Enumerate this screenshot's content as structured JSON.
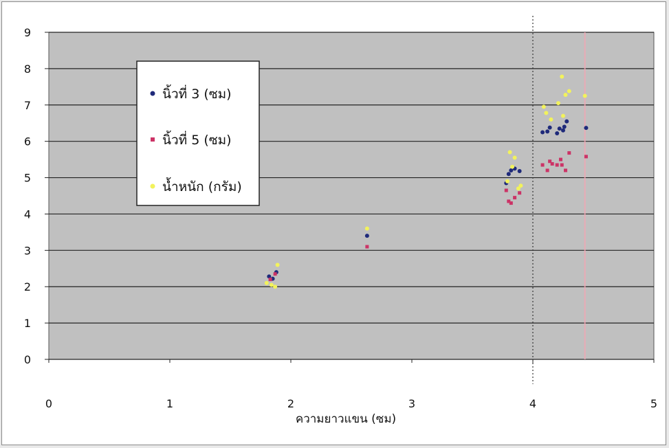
{
  "chart_data": {
    "type": "scatter",
    "title": "",
    "xlabel": "ความยาวแขน (ซม)",
    "ylabel": "",
    "xlim": [
      0,
      5
    ],
    "ylim": [
      0,
      9
    ],
    "x_ticks": [
      0,
      1,
      2,
      3,
      4,
      5
    ],
    "y_ticks": [
      0,
      1,
      2,
      3,
      4,
      5,
      6,
      7,
      8,
      9
    ],
    "grid": "horizontal",
    "legend_position": "upper-left",
    "plot_background": "#c0c0c0",
    "reference_lines": [
      {
        "x": 4.0,
        "style": "dotted",
        "color": "#333333"
      },
      {
        "x": 4.43,
        "style": "solid",
        "color": "#f4a6b4"
      }
    ],
    "series": [
      {
        "name": "นิ้วที่ 3 (ซม)",
        "color": "#1f2a7a",
        "marker": "circle",
        "points": [
          [
            1.82,
            2.28
          ],
          [
            1.85,
            2.22
          ],
          [
            1.88,
            2.4
          ],
          [
            2.63,
            3.4
          ],
          [
            3.78,
            4.85
          ],
          [
            3.8,
            5.1
          ],
          [
            3.82,
            5.2
          ],
          [
            3.85,
            5.25
          ],
          [
            3.89,
            5.18
          ],
          [
            4.08,
            6.25
          ],
          [
            4.12,
            6.27
          ],
          [
            4.14,
            6.38
          ],
          [
            4.2,
            6.22
          ],
          [
            4.22,
            6.35
          ],
          [
            4.25,
            6.3
          ],
          [
            4.26,
            6.4
          ],
          [
            4.28,
            6.55
          ],
          [
            4.44,
            6.37
          ]
        ]
      },
      {
        "name": "นิ้วที่ 5 (ซม)",
        "color": "#cc3366",
        "marker": "square",
        "points": [
          [
            1.83,
            2.2
          ],
          [
            1.87,
            2.35
          ],
          [
            2.63,
            3.1
          ],
          [
            3.78,
            4.65
          ],
          [
            3.8,
            4.35
          ],
          [
            3.82,
            4.3
          ],
          [
            3.85,
            4.45
          ],
          [
            3.89,
            4.58
          ],
          [
            4.08,
            5.35
          ],
          [
            4.12,
            5.2
          ],
          [
            4.14,
            5.45
          ],
          [
            4.16,
            5.38
          ],
          [
            4.2,
            5.35
          ],
          [
            4.23,
            5.5
          ],
          [
            4.24,
            5.35
          ],
          [
            4.27,
            5.2
          ],
          [
            4.3,
            5.68
          ],
          [
            4.44,
            5.58
          ]
        ]
      },
      {
        "name": "น้ำหนัก (กรัม)",
        "color": "#f2f25c",
        "marker": "circle",
        "points": [
          [
            1.8,
            2.1
          ],
          [
            1.84,
            2.05
          ],
          [
            1.87,
            2.0
          ],
          [
            1.89,
            2.6
          ],
          [
            2.63,
            3.6
          ],
          [
            3.79,
            4.9
          ],
          [
            3.81,
            5.7
          ],
          [
            3.83,
            5.3
          ],
          [
            3.85,
            5.55
          ],
          [
            3.88,
            4.7
          ],
          [
            3.9,
            4.78
          ],
          [
            4.09,
            6.95
          ],
          [
            4.11,
            6.78
          ],
          [
            4.15,
            6.6
          ],
          [
            4.21,
            7.05
          ],
          [
            4.24,
            7.78
          ],
          [
            4.25,
            6.7
          ],
          [
            4.27,
            7.28
          ],
          [
            4.3,
            7.38
          ],
          [
            4.43,
            7.25
          ]
        ]
      }
    ]
  }
}
